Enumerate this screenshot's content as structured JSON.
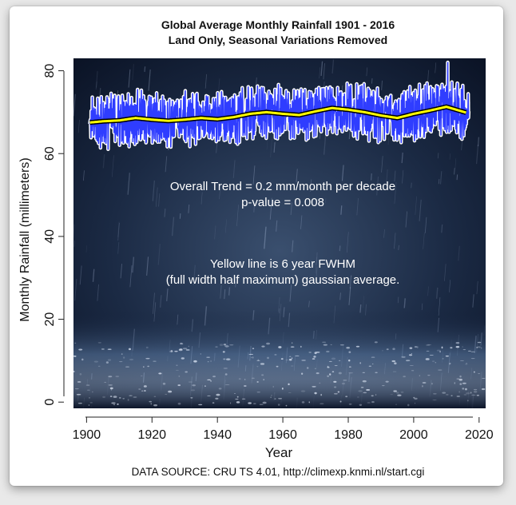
{
  "chart_data": {
    "type": "line",
    "title": "Global Average Monthly Rainfall 1901 - 2016",
    "subtitle": "Land Only, Seasonal Variations Removed",
    "xlabel": "Year",
    "ylabel": "Monthly Rainfall (millimeters)",
    "xlim": [
      1896,
      2022
    ],
    "ylim": [
      -1.5,
      83
    ],
    "x_ticks": [
      "1900",
      "1920",
      "1940",
      "1960",
      "1980",
      "2000",
      "2020"
    ],
    "y_ticks": [
      "0",
      "20",
      "40",
      "60",
      "80"
    ],
    "x_tick_values": [
      1900,
      1920,
      1940,
      1960,
      1980,
      2000,
      2020
    ],
    "y_tick_values": [
      0,
      20,
      40,
      60,
      80
    ],
    "series": [
      {
        "name": "",
        "style": "monthly",
        "color": "#2f3dff",
        "x_range": [
          1901,
          2016.9
        ],
        "y_range": [
          61,
          82
        ],
        "mean": 69
      },
      {
        "name": "",
        "style": "smoothed",
        "color": "#ffff00",
        "x": [
          1901,
          1905,
          1910,
          1915,
          1920,
          1925,
          1930,
          1935,
          1940,
          1945,
          1950,
          1955,
          1960,
          1965,
          1970,
          1975,
          1980,
          1985,
          1990,
          1995,
          2000,
          2005,
          2010,
          2016
        ],
        "y": [
          67.5,
          67.8,
          68.0,
          68.6,
          68.2,
          67.9,
          68.2,
          68.6,
          68.3,
          68.8,
          69.6,
          70.0,
          69.6,
          69.3,
          70.2,
          71.0,
          70.6,
          70.0,
          69.2,
          68.6,
          69.6,
          70.4,
          71.3,
          69.9
        ]
      }
    ],
    "annotations": [
      "Overall Trend = 0.2 mm/month per decade",
      "p-value = 0.008",
      "Yellow line is 6 year FWHM",
      "(full width half maximum) gaussian average."
    ],
    "source": "DATA SOURCE: CRU TS 4.01, http://climexp.knmi.nl/start.cgi",
    "background": "rain photograph",
    "grid": false,
    "legend": "none"
  }
}
